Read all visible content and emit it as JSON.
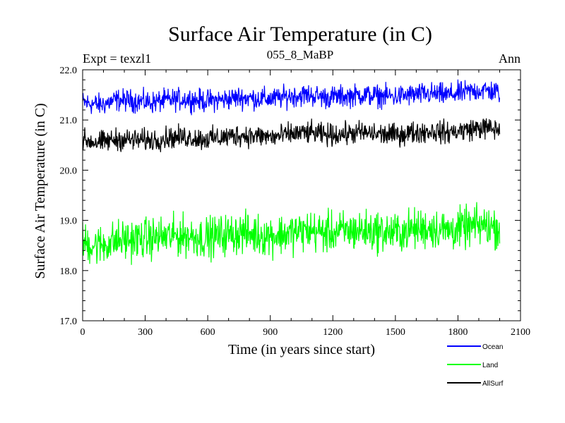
{
  "chart_data": {
    "type": "line",
    "title": "Surface Air Temperature (in C)",
    "subtitle": "055_8_MaBP",
    "left_label": "Expt = texzl1",
    "right_label": "Ann",
    "xlabel": "Time (in years since start)",
    "ylabel": "Surface Air Temperature (in C)",
    "xlim": [
      0,
      2100
    ],
    "ylim": [
      17.0,
      22.0
    ],
    "x_ticks": [
      0,
      300,
      600,
      900,
      1200,
      1500,
      1800,
      2100
    ],
    "x_tick_labels": [
      "0",
      "300",
      "600",
      "900",
      "1200",
      "1500",
      "1800",
      "2100"
    ],
    "y_ticks": [
      17.0,
      18.0,
      19.0,
      20.0,
      21.0,
      22.0
    ],
    "y_tick_labels": [
      "17.0",
      "18.0",
      "19.0",
      "20.0",
      "21.0",
      "22.0"
    ],
    "grid": false,
    "legend_position": "bottom-right",
    "x_start": 0,
    "x_end": 2000,
    "series": [
      {
        "name": "Ocean",
        "color": "#0000ff",
        "values": [
          21.35,
          21.3,
          21.4,
          21.38,
          21.35,
          21.4,
          21.42,
          21.38,
          21.4,
          21.45,
          21.43,
          21.42,
          21.48,
          21.5,
          21.45,
          21.47,
          21.5,
          21.48,
          21.47,
          21.5,
          21.52,
          21.5,
          21.55,
          21.6,
          21.55
        ]
      },
      {
        "name": "Land",
        "color": "#00ff00",
        "values": [
          18.55,
          18.5,
          18.6,
          18.62,
          18.65,
          18.68,
          18.7,
          18.65,
          18.7,
          18.75,
          18.72,
          18.7,
          18.75,
          18.8,
          18.75,
          18.78,
          18.8,
          18.78,
          18.75,
          18.82,
          18.85,
          18.8,
          18.85,
          18.9,
          18.85
        ]
      },
      {
        "name": "AllSurf",
        "color": "#000000",
        "values": [
          20.6,
          20.55,
          20.62,
          20.6,
          20.6,
          20.65,
          20.66,
          20.62,
          20.65,
          20.7,
          20.68,
          20.66,
          20.72,
          20.75,
          20.7,
          20.72,
          20.75,
          20.72,
          20.7,
          20.75,
          20.78,
          20.75,
          20.8,
          20.85,
          20.8
        ]
      }
    ],
    "noise_amplitude": [
      0.11,
      0.2,
      0.11
    ]
  }
}
